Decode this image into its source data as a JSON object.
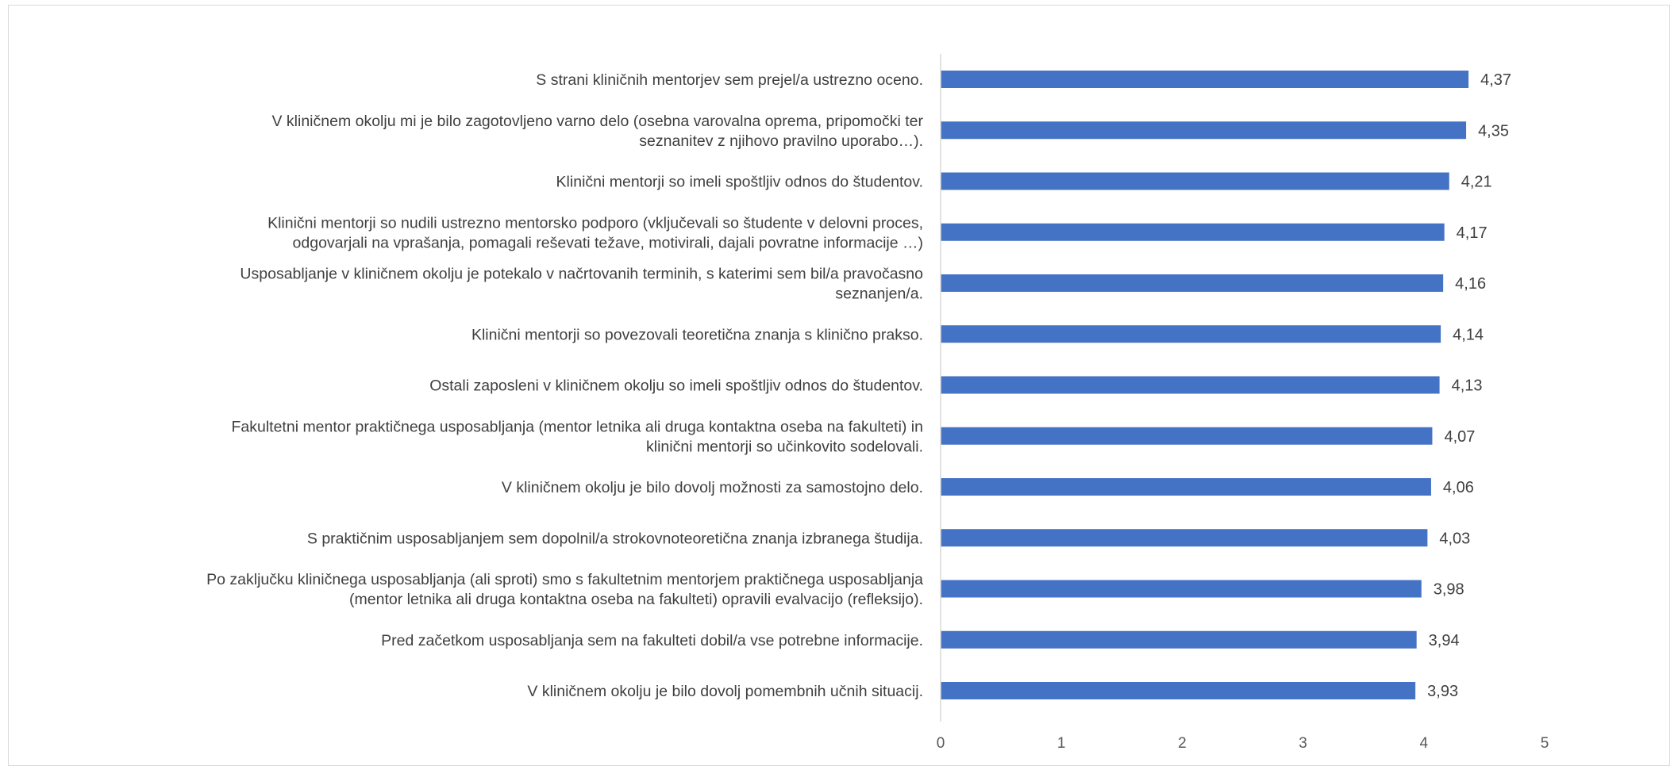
{
  "chart_data": {
    "type": "bar",
    "orientation": "horizontal",
    "title": "",
    "xlabel": "",
    "ylabel": "",
    "xlim": [
      0,
      5
    ],
    "x_ticks": [
      "0",
      "1",
      "2",
      "3",
      "4",
      "5"
    ],
    "grid": false,
    "legend": "none",
    "bar_color": "#4472C4",
    "categories": [
      [
        "S strani kliničnih mentorjev sem prejel/a ustrezno oceno."
      ],
      [
        "V kliničnem okolju mi je bilo zagotovljeno varno delo (osebna varovalna oprema, pripomočki ter",
        "seznanitev z njihovo pravilno uporabo…)."
      ],
      [
        "Klinični mentorji so imeli spoštljiv odnos do študentov."
      ],
      [
        "Klinični mentorji so nudili ustrezno mentorsko podporo (vključevali so študente v delovni proces,",
        "odgovarjali na vprašanja, pomagali reševati težave, motivirali, dajali povratne informacije …)"
      ],
      [
        "Usposabljanje v kliničnem okolju je potekalo v načrtovanih terminih, s katerimi sem bil/a pravočasno",
        "seznanjen/a."
      ],
      [
        "Klinični mentorji so povezovali teoretična znanja s klinično prakso."
      ],
      [
        "Ostali zaposleni v kliničnem okolju so imeli spoštljiv odnos do študentov."
      ],
      [
        "Fakultetni mentor praktičnega usposabljanja (mentor letnika ali druga kontaktna oseba na fakulteti) in",
        "klinični mentorji so učinkovito sodelovali."
      ],
      [
        "V kliničnem okolju je bilo dovolj možnosti za samostojno delo."
      ],
      [
        "S praktičnim usposabljanjem sem dopolnil/a strokovnoteoretična znanja izbranega študija."
      ],
      [
        "Po zaključku kliničnega usposabljanja (ali sproti) smo s fakultetnim mentorjem praktičnega usposabljanja",
        "(mentor letnika ali druga kontaktna oseba na fakulteti) opravili evalvacijo (refleksijo)."
      ],
      [
        "Pred začetkom usposabljanja sem na fakulteti dobil/a vse potrebne informacije."
      ],
      [
        "V kliničnem okolju je bilo dovolj pomembnih učnih situacij."
      ]
    ],
    "values": [
      4.37,
      4.35,
      4.21,
      4.17,
      4.16,
      4.14,
      4.13,
      4.07,
      4.06,
      4.03,
      3.98,
      3.94,
      3.93
    ],
    "data_labels": [
      "4,37",
      "4,35",
      "4,21",
      "4,17",
      "4,16",
      "4,14",
      "4,13",
      "4,07",
      "4,06",
      "4,03",
      "3,98",
      "3,94",
      "3,93"
    ]
  }
}
